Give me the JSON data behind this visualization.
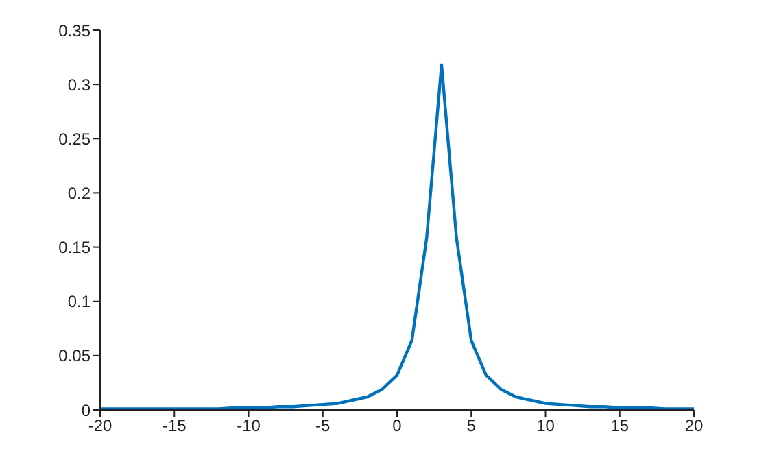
{
  "chart_data": {
    "type": "line",
    "x": [
      -20,
      -19,
      -18,
      -17,
      -16,
      -15,
      -14,
      -13,
      -12,
      -11,
      -10,
      -9,
      -8,
      -7,
      -6,
      -5,
      -4,
      -3,
      -2,
      -1,
      0,
      1,
      2,
      3,
      4,
      5,
      6,
      7,
      8,
      9,
      10,
      11,
      12,
      13,
      14,
      15,
      16,
      17,
      18,
      19,
      20
    ],
    "series": [
      {
        "color": "#0072bd",
        "values": [
          0.001,
          0.001,
          0.001,
          0.001,
          0.001,
          0.001,
          0.001,
          0.001,
          0.001,
          0.002,
          0.002,
          0.002,
          0.003,
          0.003,
          0.004,
          0.005,
          0.006,
          0.009,
          0.012,
          0.019,
          0.032,
          0.064,
          0.159,
          0.318,
          0.159,
          0.064,
          0.032,
          0.019,
          0.012,
          0.009,
          0.006,
          0.005,
          0.004,
          0.003,
          0.003,
          0.002,
          0.002,
          0.002,
          0.001,
          0.001,
          0.001
        ]
      }
    ],
    "xlim": [
      -20,
      20
    ],
    "xticks": [
      -20,
      -15,
      -10,
      -5,
      0,
      5,
      10,
      15,
      20
    ],
    "ylim": [
      0,
      0.35
    ],
    "yticks": [
      0,
      0.05,
      0.1,
      0.15,
      0.2,
      0.25,
      0.3,
      0.35
    ],
    "grid": false,
    "legend": false,
    "marker": "none",
    "line_style": "solid"
  }
}
